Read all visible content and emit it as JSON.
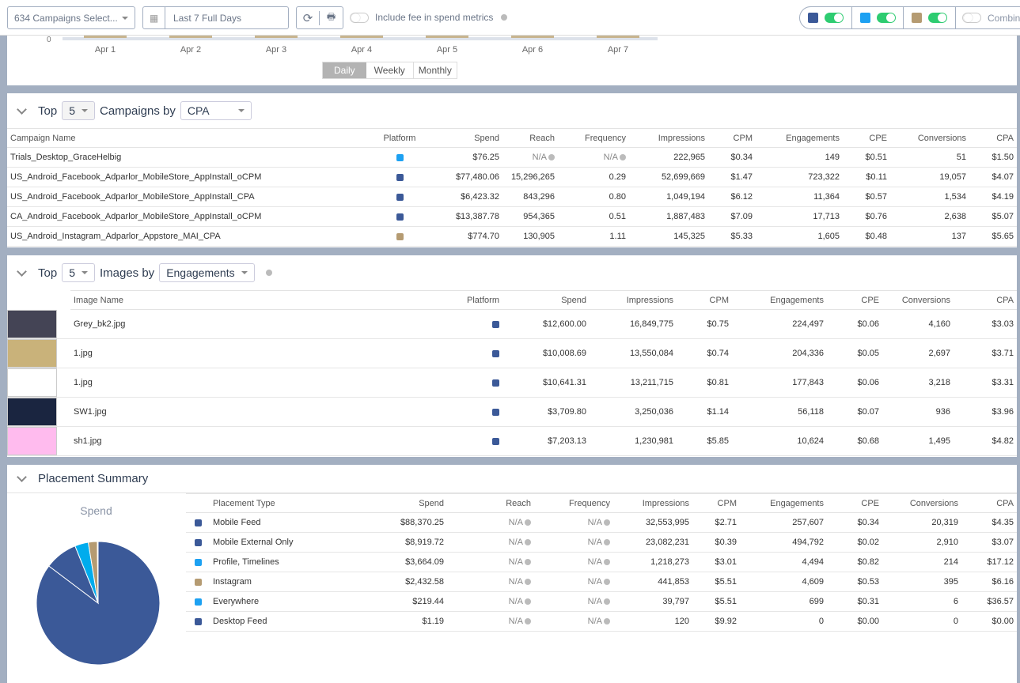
{
  "toolbar": {
    "campaigns": "634 Campaigns Select...",
    "date": "Last 7 Full Days",
    "fee_label": "Include fee in spend metrics",
    "combine_label": "Combine"
  },
  "colors": {
    "facebook": "#3b5998",
    "twitter": "#1da1f2",
    "instagram": "#b59b72",
    "toggle_on": "#2ecc71"
  },
  "chart_remnant": {
    "y_tick": "0",
    "x_ticks": [
      "Apr 1",
      "Apr 2",
      "Apr 3",
      "Apr 4",
      "Apr 5",
      "Apr 6",
      "Apr 7"
    ],
    "periods": [
      "Daily",
      "Weekly",
      "Monthly"
    ],
    "active": "Daily"
  },
  "campaigns": {
    "top": "Top",
    "n": "5",
    "by": "Campaigns by",
    "metric": "CPA",
    "headers": [
      "Campaign Name",
      "Platform",
      "Spend",
      "Reach",
      "Frequency",
      "Impressions",
      "CPM",
      "Engagements",
      "CPE",
      "Conversions",
      "CPA"
    ],
    "rows": [
      [
        "Trials_Desktop_GraceHelbig",
        "twitter",
        "$76.25",
        "N/A",
        "N/A",
        "222,965",
        "$0.34",
        "149",
        "$0.51",
        "51",
        "$1.50"
      ],
      [
        "US_Android_Facebook_Adparlor_MobileStore_AppInstall_oCPM",
        "facebook",
        "$77,480.06",
        "15,296,265",
        "0.29",
        "52,699,669",
        "$1.47",
        "723,322",
        "$0.11",
        "19,057",
        "$4.07"
      ],
      [
        "US_Android_Facebook_Adparlor_MobileStore_AppInstall_CPA",
        "facebook",
        "$6,423.32",
        "843,296",
        "0.80",
        "1,049,194",
        "$6.12",
        "11,364",
        "$0.57",
        "1,534",
        "$4.19"
      ],
      [
        "CA_Android_Facebook_Adparlor_MobileStore_AppInstall_oCPM",
        "facebook",
        "$13,387.78",
        "954,365",
        "0.51",
        "1,887,483",
        "$7.09",
        "17,713",
        "$0.76",
        "2,638",
        "$5.07"
      ],
      [
        "US_Android_Instagram_Adparlor_Appstore_MAI_CPA",
        "instagram",
        "$774.70",
        "130,905",
        "1.11",
        "145,325",
        "$5.33",
        "1,605",
        "$0.48",
        "137",
        "$5.65"
      ]
    ]
  },
  "images": {
    "top": "Top",
    "n": "5",
    "by": "Images by",
    "metric": "Engagements",
    "headers": [
      "Image Name",
      "Platform",
      "Spend",
      "Impressions",
      "CPM",
      "Engagements",
      "CPE",
      "Conversions",
      "CPA"
    ],
    "rows": [
      [
        "Grey_bk2.jpg",
        "facebook",
        "$12,600.00",
        "16,849,775",
        "$0.75",
        "224,497",
        "$0.06",
        "4,160",
        "$3.03"
      ],
      [
        "1.jpg",
        "facebook",
        "$10,008.69",
        "13,550,084",
        "$0.74",
        "204,336",
        "$0.05",
        "2,697",
        "$3.71"
      ],
      [
        "1.jpg",
        "facebook",
        "$10,641.31",
        "13,211,715",
        "$0.81",
        "177,843",
        "$0.06",
        "3,218",
        "$3.31"
      ],
      [
        "SW1.jpg",
        "facebook",
        "$3,709.80",
        "3,250,036",
        "$1.14",
        "56,118",
        "$0.07",
        "936",
        "$3.96"
      ],
      [
        "sh1.jpg",
        "facebook",
        "$7,203.13",
        "1,230,981",
        "$5.85",
        "10,624",
        "$0.68",
        "1,495",
        "$4.82"
      ]
    ]
  },
  "placement": {
    "title": "Placement Summary",
    "pie_title": "Spend",
    "headers": [
      "Placement Type",
      "Spend",
      "Reach",
      "Frequency",
      "Impressions",
      "CPM",
      "Engagements",
      "CPE",
      "Conversions",
      "CPA"
    ],
    "rows": [
      [
        "Mobile Feed",
        "facebook",
        "$88,370.25",
        "N/A",
        "N/A",
        "32,553,995",
        "$2.71",
        "257,607",
        "$0.34",
        "20,319",
        "$4.35"
      ],
      [
        "Mobile External Only",
        "facebook",
        "$8,919.72",
        "N/A",
        "N/A",
        "23,082,231",
        "$0.39",
        "494,792",
        "$0.02",
        "2,910",
        "$3.07"
      ],
      [
        "Profile, Timelines",
        "twitter",
        "$3,664.09",
        "N/A",
        "N/A",
        "1,218,273",
        "$3.01",
        "4,494",
        "$0.82",
        "214",
        "$17.12"
      ],
      [
        "Instagram",
        "instagram",
        "$2,432.58",
        "N/A",
        "N/A",
        "441,853",
        "$5.51",
        "4,609",
        "$0.53",
        "395",
        "$6.16"
      ],
      [
        "Everywhere",
        "twitter",
        "$219.44",
        "N/A",
        "N/A",
        "39,797",
        "$5.51",
        "699",
        "$0.31",
        "6",
        "$36.57"
      ],
      [
        "Desktop Feed",
        "facebook",
        "$1.19",
        "N/A",
        "N/A",
        "120",
        "$9.92",
        "0",
        "$0.00",
        "0",
        "$0.00"
      ]
    ]
  },
  "chart_data": {
    "type": "pie",
    "title": "Spend",
    "categories": [
      "Mobile Feed",
      "Mobile External Only",
      "Profile, Timelines",
      "Instagram",
      "Everywhere",
      "Desktop Feed"
    ],
    "values": [
      88370.25,
      8919.72,
      3664.09,
      2432.58,
      219.44,
      1.19
    ],
    "colors": [
      "#3b5998",
      "#3b5998",
      "#00aced",
      "#b59b72",
      "#00aced",
      "#3b5998"
    ]
  }
}
